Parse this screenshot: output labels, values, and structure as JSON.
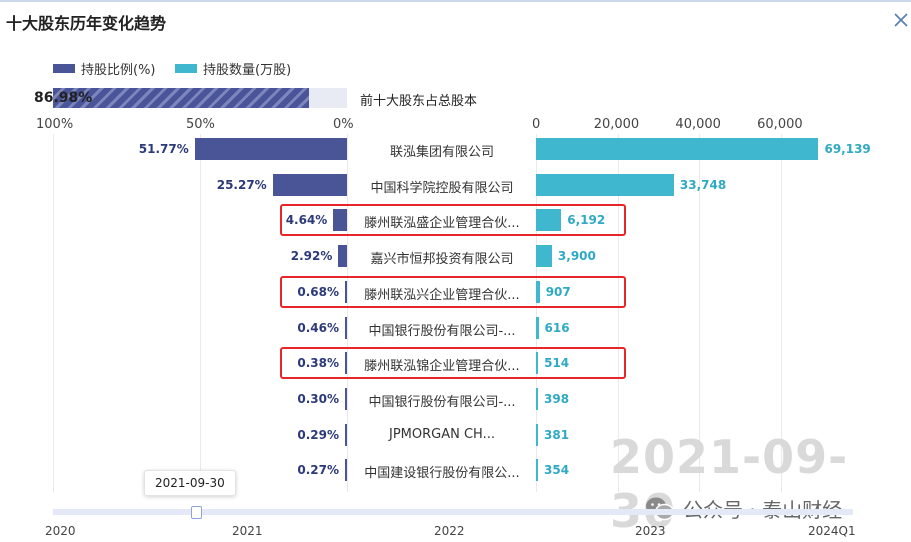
{
  "title": "十大股东历年变化趋势",
  "close_icon": "close-icon",
  "colors": {
    "ratio": "#4a5598",
    "quantity": "#3fb7cf",
    "highlight": "#e8262a"
  },
  "watermark": "2021-09-30",
  "wechat": {
    "icon": "wechat-icon",
    "text": "公众号 · 泰山财经"
  },
  "timeline": {
    "tooltip": "2021-09-30",
    "years": [
      "2020",
      "2021",
      "2022",
      "2023",
      "2024Q1"
    ]
  },
  "chart_data": {
    "type": "bar",
    "legend": [
      "持股比例(%)",
      "持股数量(万股)"
    ],
    "legend_position": "top-left",
    "summary": {
      "label": "前十大股东占总股本",
      "value": 86.98,
      "value_label": "86.98%"
    },
    "left_axis": {
      "ticks": [
        "100%",
        "50%",
        "0%"
      ],
      "range": [
        0,
        100
      ]
    },
    "right_axis": {
      "ticks": [
        "0",
        "20,000",
        "40,000",
        "60,000"
      ],
      "range": [
        0,
        70000
      ]
    },
    "categories": [
      "联泓集团有限公司",
      "中国科学院控股有限公司",
      "滕州联泓盛企业管理合伙...",
      "嘉兴市恒邦投资有限公司",
      "滕州联泓兴企业管理合伙...",
      "中国银行股份有限公司-...",
      "滕州联泓锦企业管理合伙...",
      "中国银行股份有限公司-...",
      "JPMORGAN CH...",
      "中国建设银行股份有限公..."
    ],
    "series": [
      {
        "name": "持股比例(%)",
        "values": [
          51.77,
          25.27,
          4.64,
          2.92,
          0.68,
          0.46,
          0.38,
          0.3,
          0.29,
          0.27
        ],
        "labels": [
          "51.77%",
          "25.27%",
          "4.64%",
          "2.92%",
          "0.68%",
          "0.46%",
          "0.38%",
          "0.30%",
          "0.29%",
          "0.27%"
        ]
      },
      {
        "name": "持股数量(万股)",
        "values": [
          69139,
          33748,
          6192,
          3900,
          907,
          616,
          514,
          398,
          381,
          354
        ],
        "labels": [
          "69,139",
          "33,748",
          "6,192",
          "3,900",
          "907",
          "616",
          "514",
          "398",
          "381",
          "354"
        ]
      }
    ],
    "highlighted_rows": [
      2,
      4,
      6
    ],
    "grid": true
  }
}
